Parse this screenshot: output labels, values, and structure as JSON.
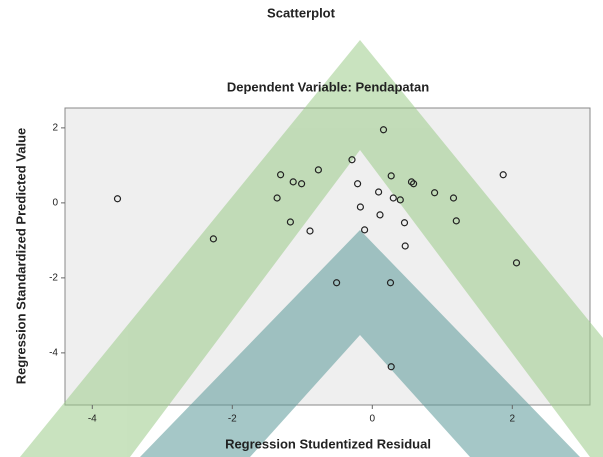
{
  "chart_data": {
    "type": "scatter",
    "title": "Scatterplot",
    "subtitle": "Dependent Variable: Pendapatan",
    "x_label": "Regression Studentized Residual",
    "y_label": "Regression Standardized Predicted Value",
    "x": [
      -3.64,
      -2.27,
      -1.31,
      -1.36,
      -1.13,
      -1.01,
      -0.77,
      -1.17,
      -0.89,
      -0.51,
      -0.29,
      0.16,
      -0.21,
      -0.17,
      -0.11,
      0.09,
      0.11,
      0.27,
      0.3,
      0.4,
      0.46,
      0.47,
      0.56,
      0.59,
      0.26,
      0.27,
      0.89,
      1.16,
      1.2,
      1.87,
      2.06
    ],
    "values": [
      0.11,
      -0.96,
      0.75,
      0.13,
      0.56,
      0.51,
      0.88,
      -0.51,
      -0.75,
      -2.13,
      1.15,
      1.95,
      0.51,
      -0.11,
      -0.72,
      0.29,
      -0.32,
      0.72,
      0.13,
      0.08,
      -0.53,
      -1.15,
      0.56,
      0.51,
      -2.13,
      -4.37,
      0.27,
      0.13,
      -0.48,
      0.75,
      -1.6
    ],
    "color": "#222222",
    "xlim": [
      -4.39,
      3.11
    ],
    "ylim": [
      -5.39,
      2.53
    ],
    "xticks": [
      -4,
      -2,
      0,
      2
    ],
    "yticks": [
      2,
      0,
      -2,
      -4
    ],
    "grid": false
  }
}
